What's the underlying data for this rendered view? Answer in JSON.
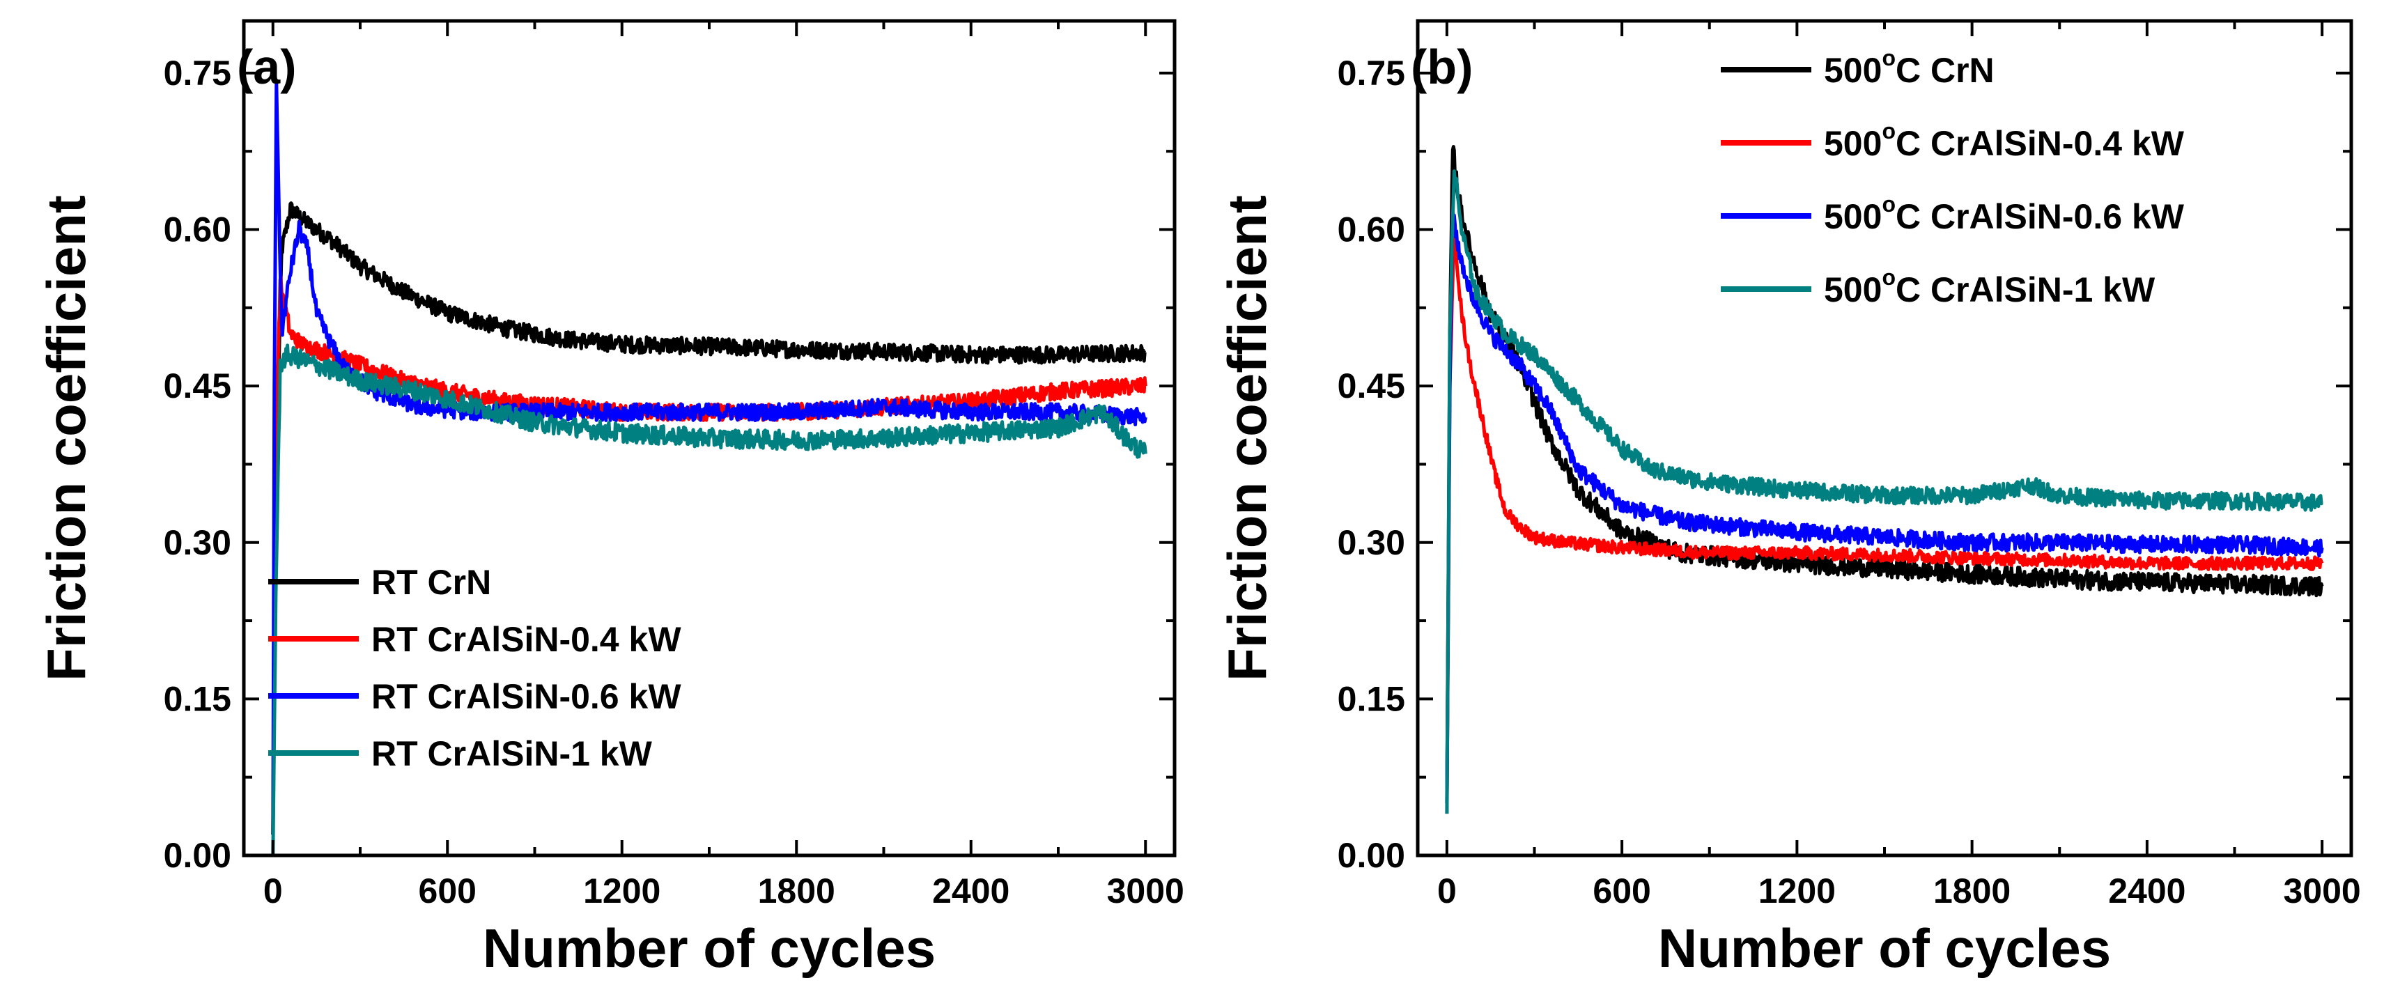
{
  "chart_data": [
    {
      "type": "line",
      "panel_label": "(a)",
      "xlabel": "Number of cycles",
      "ylabel": "Friction coefficient",
      "xlim": [
        -100,
        3100
      ],
      "ylim": [
        0,
        0.8
      ],
      "xticks": [
        0,
        600,
        1200,
        1800,
        2400,
        3000
      ],
      "xtick_labels": [
        "0",
        "600",
        "1200",
        "1800",
        "2400",
        "3000"
      ],
      "yticks": [
        0,
        0.15,
        0.3,
        0.45,
        0.6,
        0.75
      ],
      "ytick_labels": [
        "0.00",
        "0.15",
        "0.30",
        "0.45",
        "0.60",
        "0.75"
      ],
      "grid": false,
      "legend_position": "bottom-left",
      "series": [
        {
          "name": "RT CrN",
          "legend_prefix": "",
          "legend_sup": "",
          "legend_rest": "RT CrN",
          "color": "#000000",
          "noise": 0.008,
          "x": [
            0,
            10,
            30,
            60,
            100,
            200,
            300,
            450,
            600,
            800,
            1000,
            1200,
            1500,
            1800,
            2100,
            2400,
            2700,
            3000
          ],
          "y": [
            0.02,
            0.35,
            0.58,
            0.62,
            0.61,
            0.59,
            0.565,
            0.54,
            0.52,
            0.505,
            0.495,
            0.49,
            0.488,
            0.485,
            0.483,
            0.48,
            0.48,
            0.482
          ]
        },
        {
          "name": "RT CrAlSiN-0.4 kW",
          "legend_prefix": "",
          "legend_sup": "",
          "legend_rest": "RT CrAlSiN-0.4 kW",
          "color": "#ff0000",
          "noise": 0.008,
          "x": [
            0,
            10,
            25,
            60,
            100,
            200,
            300,
            450,
            600,
            800,
            1000,
            1200,
            1500,
            1800,
            2100,
            2400,
            2700,
            3000
          ],
          "y": [
            0.02,
            0.4,
            0.55,
            0.5,
            0.49,
            0.48,
            0.47,
            0.455,
            0.445,
            0.435,
            0.43,
            0.425,
            0.425,
            0.425,
            0.43,
            0.435,
            0.445,
            0.45
          ]
        },
        {
          "name": "RT CrAlSiN-0.6 kW",
          "legend_prefix": "",
          "legend_sup": "",
          "legend_rest": "RT CrAlSiN-0.6 kW",
          "color": "#0000ff",
          "noise": 0.008,
          "x": [
            0,
            5,
            12,
            30,
            60,
            90,
            120,
            150,
            200,
            250,
            350,
            500,
            700,
            900,
            1200,
            1500,
            1800,
            2100,
            2400,
            2700,
            3000
          ],
          "y": [
            0.02,
            0.45,
            0.74,
            0.5,
            0.56,
            0.6,
            0.58,
            0.52,
            0.49,
            0.465,
            0.445,
            0.43,
            0.425,
            0.425,
            0.425,
            0.425,
            0.425,
            0.43,
            0.425,
            0.425,
            0.42
          ]
        },
        {
          "name": "RT CrAlSiN-1 kW",
          "legend_prefix": "",
          "legend_sup": "",
          "legend_rest": "RT CrAlSiN-1 kW",
          "color": "#008080",
          "noise": 0.009,
          "x": [
            0,
            10,
            25,
            50,
            100,
            200,
            300,
            500,
            700,
            900,
            1200,
            1500,
            1800,
            2100,
            2400,
            2700,
            2850,
            2950,
            3000
          ],
          "y": [
            0.0,
            0.25,
            0.47,
            0.48,
            0.475,
            0.465,
            0.455,
            0.445,
            0.43,
            0.415,
            0.405,
            0.4,
            0.398,
            0.4,
            0.405,
            0.41,
            0.425,
            0.395,
            0.385
          ]
        }
      ]
    },
    {
      "type": "line",
      "panel_label": "(b)",
      "xlabel": "Number of cycles",
      "ylabel": "Friction coefficient",
      "xlim": [
        -100,
        3100
      ],
      "ylim": [
        0,
        0.8
      ],
      "xticks": [
        0,
        600,
        1200,
        1800,
        2400,
        3000
      ],
      "xtick_labels": [
        "0",
        "600",
        "1200",
        "1800",
        "2400",
        "3000"
      ],
      "yticks": [
        0,
        0.15,
        0.3,
        0.45,
        0.6,
        0.75
      ],
      "ytick_labels": [
        "0.00",
        "0.15",
        "0.30",
        "0.45",
        "0.60",
        "0.75"
      ],
      "grid": false,
      "legend_position": "top-right",
      "series": [
        {
          "name": "500°C CrN",
          "legend_prefix": "500",
          "legend_sup": "o",
          "legend_rest": "C CrN",
          "color": "#000000",
          "noise": 0.009,
          "x": [
            0,
            10,
            20,
            40,
            80,
            150,
            250,
            350,
            450,
            600,
            800,
            1000,
            1200,
            1500,
            1800,
            2100,
            2400,
            2700,
            3000
          ],
          "y": [
            0.05,
            0.5,
            0.68,
            0.63,
            0.58,
            0.52,
            0.47,
            0.4,
            0.35,
            0.31,
            0.29,
            0.285,
            0.28,
            0.275,
            0.27,
            0.265,
            0.262,
            0.26,
            0.258
          ]
        },
        {
          "name": "500°C CrAlSiN-0.4 kW",
          "legend_prefix": "500",
          "legend_sup": "o",
          "legend_rest": "C CrAlSiN-0.4 kW",
          "color": "#ff0000",
          "noise": 0.006,
          "x": [
            0,
            10,
            25,
            50,
            80,
            120,
            160,
            200,
            250,
            300,
            400,
            600,
            900,
            1200,
            1500,
            1800,
            2100,
            2400,
            2700,
            3000
          ],
          "y": [
            0.04,
            0.45,
            0.6,
            0.52,
            0.47,
            0.42,
            0.37,
            0.33,
            0.315,
            0.305,
            0.3,
            0.295,
            0.29,
            0.29,
            0.288,
            0.285,
            0.283,
            0.28,
            0.28,
            0.28
          ]
        },
        {
          "name": "500°C CrAlSiN-0.6 kW",
          "legend_prefix": "500",
          "legend_sup": "o",
          "legend_rest": "C CrAlSiN-0.6 kW",
          "color": "#0000ff",
          "noise": 0.008,
          "x": [
            0,
            10,
            20,
            40,
            80,
            150,
            250,
            350,
            450,
            600,
            800,
            1000,
            1200,
            1500,
            1800,
            2100,
            2400,
            2700,
            3000
          ],
          "y": [
            0.05,
            0.45,
            0.62,
            0.58,
            0.54,
            0.5,
            0.47,
            0.43,
            0.37,
            0.335,
            0.32,
            0.315,
            0.31,
            0.305,
            0.3,
            0.3,
            0.298,
            0.298,
            0.295
          ]
        },
        {
          "name": "500°C CrAlSiN-1 kW",
          "legend_prefix": "500",
          "legend_sup": "o",
          "legend_rest": "C CrAlSiN-1 kW",
          "color": "#008080",
          "noise": 0.008,
          "x": [
            0,
            10,
            25,
            50,
            100,
            200,
            300,
            400,
            500,
            600,
            700,
            850,
            1000,
            1200,
            1500,
            1800,
            2000,
            2100,
            2400,
            2700,
            3000
          ],
          "y": [
            0.04,
            0.5,
            0.66,
            0.6,
            0.54,
            0.5,
            0.48,
            0.45,
            0.42,
            0.39,
            0.37,
            0.36,
            0.355,
            0.35,
            0.345,
            0.345,
            0.355,
            0.345,
            0.34,
            0.34,
            0.338
          ]
        }
      ]
    }
  ]
}
